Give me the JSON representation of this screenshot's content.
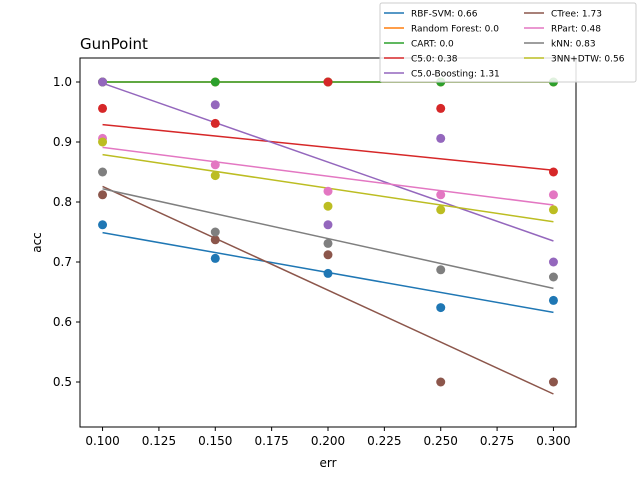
{
  "chart_data": {
    "type": "scatter",
    "title": "GunPoint",
    "xlabel": "err",
    "ylabel": "acc",
    "xlim": [
      0.09,
      0.31
    ],
    "ylim": [
      0.425,
      1.04
    ],
    "xticks": [
      0.1,
      0.125,
      0.15,
      0.175,
      0.2,
      0.225,
      0.25,
      0.275,
      0.3
    ],
    "xtick_labels": [
      "0.100",
      "0.125",
      "0.150",
      "0.175",
      "0.200",
      "0.225",
      "0.250",
      "0.275",
      "0.300"
    ],
    "yticks": [
      0.5,
      0.6,
      0.7,
      0.8,
      0.9,
      1.0
    ],
    "ytick_labels": [
      "0.5",
      "0.6",
      "0.7",
      "0.8",
      "0.9",
      "1.0"
    ],
    "grid": false,
    "legend_position": "top-right, above plot",
    "legend_columns": 2,
    "x": [
      0.1,
      0.15,
      0.2,
      0.25,
      0.3
    ],
    "series": [
      {
        "name": "RBF-SVM: 0.66",
        "color": "#1f77b4",
        "values": [
          0.762,
          0.706,
          0.681,
          0.624,
          0.636
        ],
        "fit": [
          0.749,
          0.616
        ]
      },
      {
        "name": "Random Forest: 0.0",
        "color": "#ff7f0e",
        "values": [
          1.0,
          1.0,
          1.0,
          1.0,
          1.0
        ],
        "fit": [
          1.0,
          1.0
        ]
      },
      {
        "name": "CART: 0.0",
        "color": "#2ca02c",
        "values": [
          1.0,
          1.0,
          1.0,
          1.0,
          1.0
        ],
        "fit": [
          1.0,
          1.0
        ]
      },
      {
        "name": "C5.0: 0.38",
        "color": "#d62728",
        "values": [
          0.956,
          0.931,
          1.0,
          0.956,
          0.85
        ],
        "fit": [
          0.929,
          0.853
        ]
      },
      {
        "name": "C5.0-Boosting: 1.31",
        "color": "#9467bd",
        "values": [
          1.0,
          0.962,
          0.762,
          0.906,
          0.7
        ],
        "fit": [
          0.998,
          0.735
        ]
      },
      {
        "name": "CTree: 1.73",
        "color": "#8c564b",
        "values": [
          0.812,
          0.737,
          0.712,
          0.5,
          0.5
        ],
        "fit": [
          0.826,
          0.48
        ]
      },
      {
        "name": "RPart: 0.48",
        "color": "#e377c2",
        "values": [
          0.906,
          0.862,
          0.818,
          0.812,
          0.812
        ],
        "fit": [
          0.891,
          0.795
        ]
      },
      {
        "name": "kNN: 0.83",
        "color": "#7f7f7f",
        "values": [
          0.85,
          0.75,
          0.731,
          0.687,
          0.675
        ],
        "fit": [
          0.822,
          0.656
        ]
      },
      {
        "name": "3NN+DTW: 0.56",
        "color": "#bcbd22",
        "values": [
          0.9,
          0.844,
          0.793,
          0.787,
          0.787
        ],
        "fit": [
          0.879,
          0.767
        ]
      }
    ]
  }
}
